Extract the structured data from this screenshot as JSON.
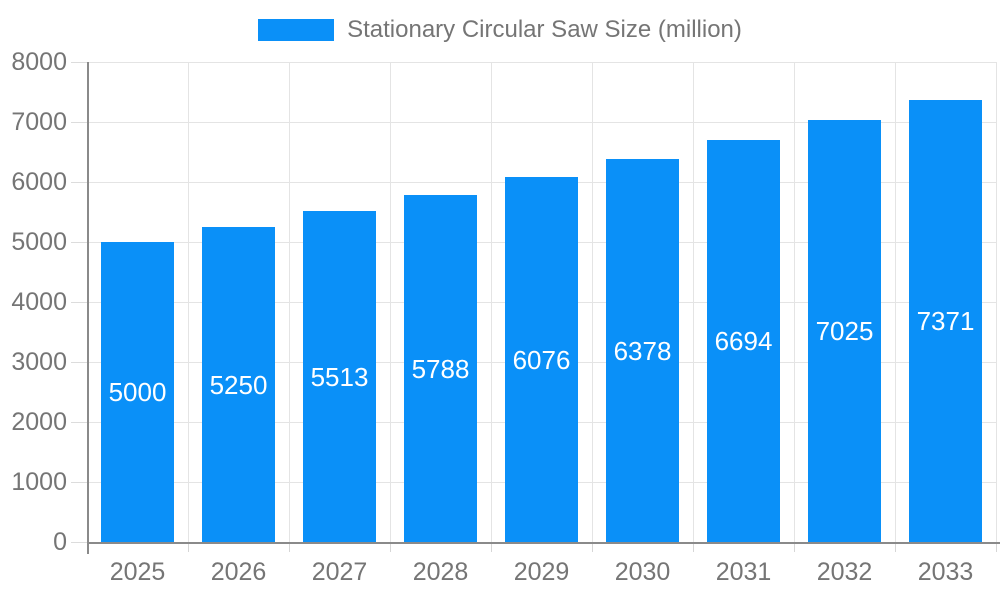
{
  "chart_data": {
    "type": "bar",
    "legend": "Stationary Circular Saw Size (million)",
    "legend_position": "top",
    "categories": [
      "2025",
      "2026",
      "2027",
      "2028",
      "2029",
      "2030",
      "2031",
      "2032",
      "2033"
    ],
    "values": [
      5000,
      5250,
      5513,
      5788,
      6076,
      6378,
      6694,
      7025,
      7371
    ],
    "xlabel": "",
    "ylabel": "",
    "ylim": [
      0,
      8000
    ],
    "yticks": [
      0,
      1000,
      2000,
      3000,
      4000,
      5000,
      6000,
      7000,
      8000
    ],
    "grid": true,
    "colors": {
      "bar": "#0a90f8",
      "bar_value_text": "#ffffff",
      "axis_text": "#757575",
      "axis_line": "#8a8a8a",
      "gridline": "#e4e4e4"
    }
  }
}
